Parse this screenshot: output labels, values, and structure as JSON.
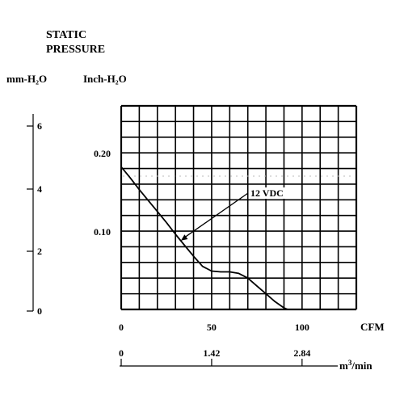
{
  "title_lines": [
    "STATIC",
    "PRESSURE"
  ],
  "unit_mm": "mm-H₂O",
  "unit_inch": "Inch-H₂O",
  "mm_ticks": [
    "6",
    "4",
    "2",
    "0"
  ],
  "inch_ticks": [
    "0.20",
    "0.10"
  ],
  "cfm_ticks": [
    "0",
    "50",
    "100"
  ],
  "cfm_label": "CFM",
  "m3_ticks": [
    "0",
    "1.42",
    "2.84"
  ],
  "m3_label_base": "m",
  "m3_label_sup": "3",
  "m3_label_rest": "/min",
  "chart_data": {
    "type": "line",
    "title": "STATIC PRESSURE",
    "xlabel": "CFM",
    "ylabel": "Inch-H₂O",
    "xlim": [
      0,
      130
    ],
    "ylim": [
      0,
      0.26
    ],
    "grid": true,
    "series": [
      {
        "name": "12 VDC",
        "x": [
          0,
          5,
          10,
          15,
          20,
          25,
          30,
          35,
          40,
          45,
          50,
          55,
          60,
          65,
          70,
          75,
          80,
          85,
          90,
          92
        ],
        "y": [
          0.182,
          0.168,
          0.153,
          0.139,
          0.125,
          0.111,
          0.096,
          0.082,
          0.068,
          0.055,
          0.049,
          0.048,
          0.048,
          0.046,
          0.04,
          0.03,
          0.02,
          0.01,
          0.002,
          0
        ]
      }
    ],
    "annotations": [
      {
        "text": "12 VDC",
        "points_to_x": 33,
        "points_to_y": 0.088
      }
    ]
  }
}
